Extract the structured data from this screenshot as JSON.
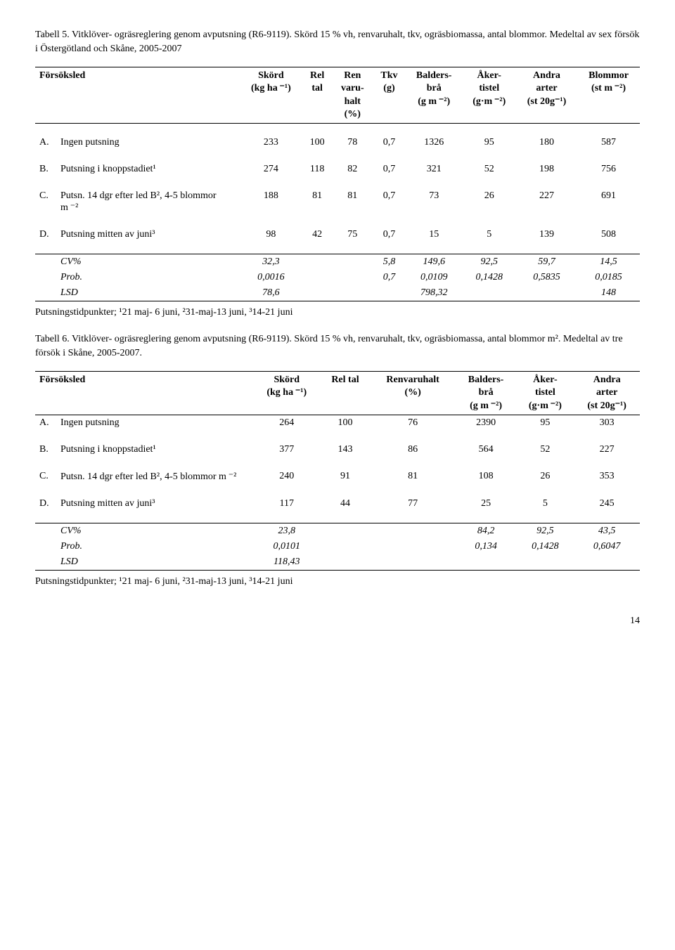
{
  "table5": {
    "caption": "Tabell 5. Vitklöver- ogräsreglering genom avputsning (R6-9119). Skörd 15 % vh, renvaruhalt, tkv, ogräsbiomassa, antal blommor. Medeltal av sex försök i Östergötland och Skåne, 2005-2007",
    "headers": {
      "forsoksled": "Försöksled",
      "skord": "Skörd\n(kg ha ⁻¹)",
      "reltal": "Rel\ntal",
      "ren": "Ren\nvaru-\nhalt\n(%)",
      "tkv": "Tkv\n(g)",
      "balders": "Balders-\nbrå\n(g m ⁻²)",
      "aker": "Åker-\ntistel\n(g·m ⁻²)",
      "andra": "Andra\narter\n(st 20g⁻¹)",
      "blommor": "Blommor\n(st m ⁻²)"
    },
    "rows": [
      {
        "k": "A.",
        "label": "Ingen putsning",
        "c": [
          "233",
          "100",
          "78",
          "0,7",
          "1326",
          "95",
          "180",
          "587"
        ]
      },
      {
        "k": "B.",
        "label": "Putsning i knoppstadiet¹",
        "c": [
          "274",
          "118",
          "82",
          "0,7",
          "321",
          "52",
          "198",
          "756"
        ]
      },
      {
        "k": "C.",
        "label": "Putsn. 14 dgr efter led B², 4-5 blommor m ⁻²",
        "c": [
          "188",
          "81",
          "81",
          "0,7",
          "73",
          "26",
          "227",
          "691"
        ]
      },
      {
        "k": "D.",
        "label": "Putsning mitten av juni³",
        "c": [
          "98",
          "42",
          "75",
          "0,7",
          "15",
          "5",
          "139",
          "508"
        ]
      }
    ],
    "stats": [
      {
        "label": "CV%",
        "c": [
          "32,3",
          "",
          "",
          "5,8",
          "149,6",
          "92,5",
          "59,7",
          "14,5"
        ]
      },
      {
        "label": "Prob.",
        "c": [
          "0,0016",
          "",
          "",
          "0,7",
          "0,0109",
          "0,1428",
          "0,5835",
          "0,0185"
        ]
      },
      {
        "label": "LSD",
        "c": [
          "78,6",
          "",
          "",
          "",
          "798,32",
          "",
          "",
          "148"
        ]
      }
    ],
    "footnote": "Putsningstidpunkter; ¹21 maj- 6 juni, ²31-maj-13 juni, ³14-21 juni"
  },
  "table6": {
    "caption": "Tabell 6. Vitklöver- ogräsreglering genom avputsning (R6-9119). Skörd 15 % vh, renvaruhalt, tkv, ogräsbiomassa, antal blommor m². Medeltal av tre försök i Skåne, 2005-2007.",
    "headers": {
      "forsoksled": "Försöksled",
      "skord": "Skörd\n(kg ha ⁻¹)",
      "reltal": "Rel tal",
      "ren": "Renvaruhalt\n(%)",
      "balders": "Balders-\nbrå\n(g m ⁻²)",
      "aker": "Åker-\ntistel\n(g·m ⁻²)",
      "andra": "Andra\narter\n(st 20g⁻¹)"
    },
    "rows": [
      {
        "k": "A.",
        "label": "Ingen putsning",
        "c": [
          "264",
          "100",
          "76",
          "2390",
          "95",
          "303"
        ]
      },
      {
        "k": "B.",
        "label": "Putsning i knoppstadiet¹",
        "c": [
          "377",
          "143",
          "86",
          "564",
          "52",
          "227"
        ]
      },
      {
        "k": "C.",
        "label": "Putsn. 14 dgr efter led B², 4-5 blommor m ⁻²",
        "c": [
          "240",
          "91",
          "81",
          "108",
          "26",
          "353"
        ]
      },
      {
        "k": "D.",
        "label": "Putsning mitten av juni³",
        "c": [
          "117",
          "44",
          "77",
          "25",
          "5",
          "245"
        ]
      }
    ],
    "stats": [
      {
        "label": "CV%",
        "c": [
          "23,8",
          "",
          "",
          "84,2",
          "92,5",
          "43,5"
        ]
      },
      {
        "label": "Prob.",
        "c": [
          "0,0101",
          "",
          "",
          "0,134",
          "0,1428",
          "0,6047"
        ]
      },
      {
        "label": "LSD",
        "c": [
          "118,43",
          "",
          "",
          "",
          "",
          ""
        ]
      }
    ],
    "footnote": "Putsningstidpunkter; ¹21 maj- 6 juni, ²31-maj-13 juni, ³14-21 juni"
  },
  "pagenum": "14"
}
